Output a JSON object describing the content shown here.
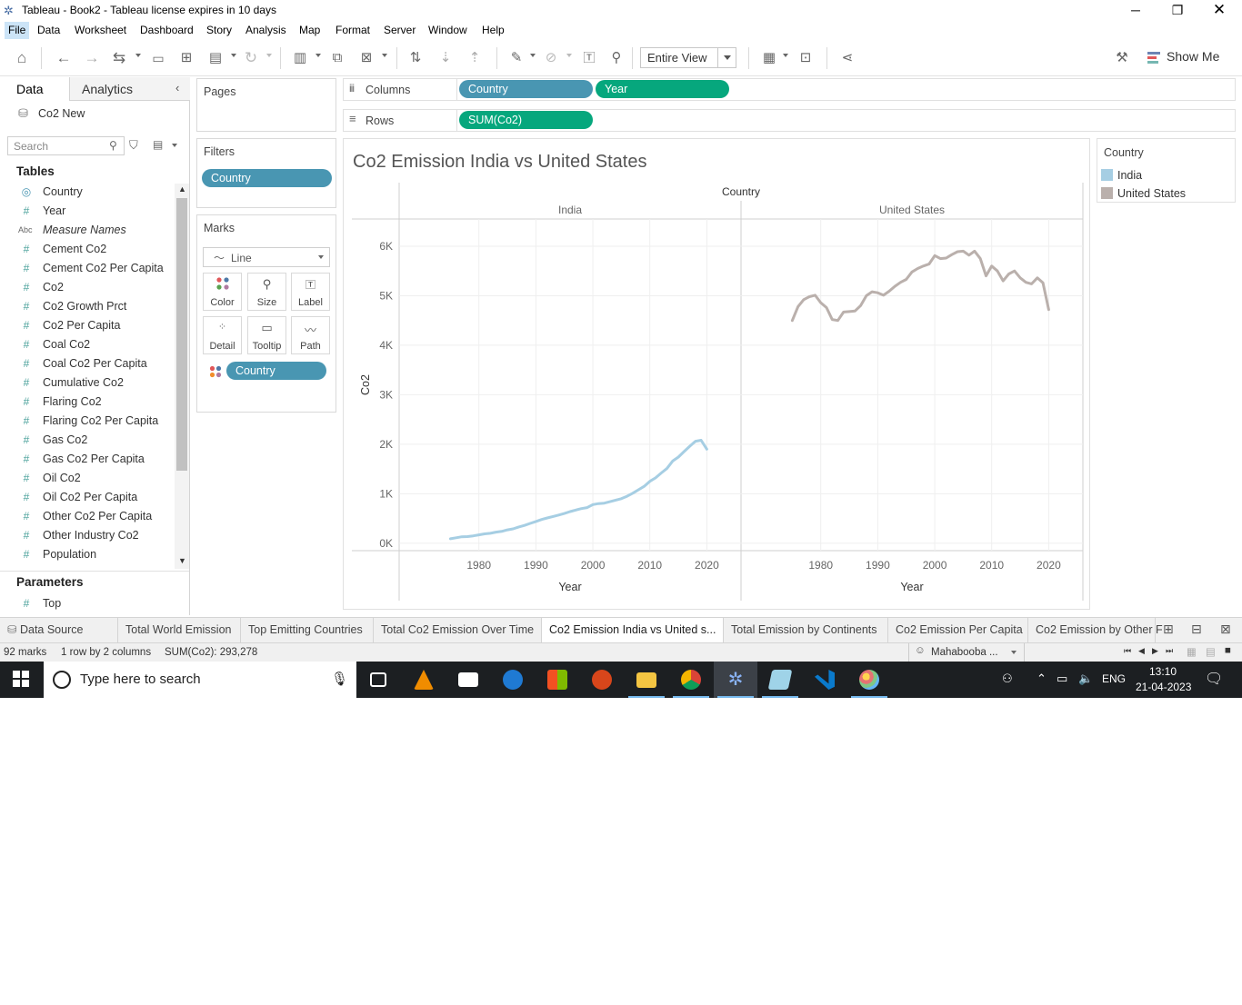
{
  "window": {
    "title": "Tableau - Book2 - Tableau license expires in 10 days"
  },
  "menu": [
    "File",
    "Data",
    "Worksheet",
    "Dashboard",
    "Story",
    "Analysis",
    "Map",
    "Format",
    "Server",
    "Window",
    "Help"
  ],
  "toolbar": {
    "fit_label": "Entire View",
    "show_me_label": "Show Me"
  },
  "data_pane": {
    "tabs": [
      "Data",
      "Analytics"
    ],
    "datasource": "Co2 New",
    "search_placeholder": "Search",
    "tables_heading": "Tables",
    "fields": [
      {
        "icon": "globe",
        "label": "Country",
        "italic": false
      },
      {
        "icon": "#",
        "label": "Year",
        "italic": false
      },
      {
        "icon": "Abc",
        "label": "Measure Names",
        "italic": true
      },
      {
        "icon": "#",
        "label": "Cement Co2",
        "italic": false
      },
      {
        "icon": "#",
        "label": "Cement Co2 Per Capita",
        "italic": false
      },
      {
        "icon": "#",
        "label": "Co2",
        "italic": false
      },
      {
        "icon": "#",
        "label": "Co2 Growth Prct",
        "italic": false
      },
      {
        "icon": "#",
        "label": "Co2 Per Capita",
        "italic": false
      },
      {
        "icon": "#",
        "label": "Coal Co2",
        "italic": false
      },
      {
        "icon": "#",
        "label": "Coal Co2 Per Capita",
        "italic": false
      },
      {
        "icon": "#",
        "label": "Cumulative Co2",
        "italic": false
      },
      {
        "icon": "#",
        "label": "Flaring Co2",
        "italic": false
      },
      {
        "icon": "#",
        "label": "Flaring Co2 Per Capita",
        "italic": false
      },
      {
        "icon": "#",
        "label": "Gas Co2",
        "italic": false
      },
      {
        "icon": "#",
        "label": "Gas Co2 Per Capita",
        "italic": false
      },
      {
        "icon": "#",
        "label": "Oil Co2",
        "italic": false
      },
      {
        "icon": "#",
        "label": "Oil Co2 Per Capita",
        "italic": false
      },
      {
        "icon": "#",
        "label": "Other Co2 Per Capita",
        "italic": false
      },
      {
        "icon": "#",
        "label": "Other Industry Co2",
        "italic": false
      },
      {
        "icon": "#",
        "label": "Population",
        "italic": false
      }
    ],
    "parameters_heading": "Parameters",
    "parameters": [
      {
        "icon": "#",
        "label": "Top"
      }
    ]
  },
  "cards": {
    "pages": "Pages",
    "filters": "Filters",
    "filter_pill": "Country",
    "marks": "Marks",
    "mark_type": "Line",
    "mark_buttons": [
      "Color",
      "Size",
      "Label",
      "Detail",
      "Tooltip",
      "Path"
    ],
    "color_pill": "Country"
  },
  "shelves": {
    "columns_label": "Columns",
    "rows_label": "Rows",
    "columns_pills": [
      "Country",
      "Year"
    ],
    "rows_pills": [
      "SUM(Co2)"
    ]
  },
  "legend": {
    "title": "Country",
    "items": [
      {
        "label": "India",
        "color": "#a6cee3"
      },
      {
        "label": "United States",
        "color": "#bab0ac"
      }
    ]
  },
  "chart_data": {
    "type": "line",
    "title": "Co2 Emission India vs United States",
    "column_header": "Country",
    "panes": [
      "India",
      "United States"
    ],
    "xlabel": "Year",
    "ylabel": "Co2",
    "xticks": [
      1980,
      1990,
      2000,
      2010,
      2020
    ],
    "yticks": [
      0,
      1000,
      2000,
      3000,
      4000,
      5000,
      6000
    ],
    "ytick_labels": [
      "0K",
      "1K",
      "2K",
      "3K",
      "4K",
      "5K",
      "6K"
    ],
    "xlim": [
      1966,
      2026
    ],
    "ylim": [
      -150,
      6550
    ],
    "series": [
      {
        "name": "India",
        "color": "#a6cee3",
        "x": [
          1975,
          1976,
          1977,
          1978,
          1979,
          1980,
          1981,
          1982,
          1983,
          1984,
          1985,
          1986,
          1987,
          1988,
          1989,
          1990,
          1991,
          1992,
          1993,
          1994,
          1995,
          1996,
          1997,
          1998,
          1999,
          2000,
          2001,
          2002,
          2003,
          2004,
          2005,
          2006,
          2007,
          2008,
          2009,
          2010,
          2011,
          2012,
          2013,
          2014,
          2015,
          2016,
          2017,
          2018,
          2019,
          2020
        ],
        "y": [
          90,
          110,
          130,
          135,
          150,
          170,
          190,
          200,
          225,
          240,
          270,
          290,
          330,
          360,
          400,
          440,
          480,
          510,
          540,
          570,
          600,
          640,
          670,
          700,
          720,
          780,
          800,
          810,
          840,
          870,
          900,
          950,
          1010,
          1080,
          1150,
          1250,
          1320,
          1420,
          1510,
          1660,
          1740,
          1850,
          1960,
          2060,
          2080,
          1900
        ]
      },
      {
        "name": "United States",
        "color": "#bab0ac",
        "x": [
          1975,
          1976,
          1977,
          1978,
          1979,
          1980,
          1981,
          1982,
          1983,
          1984,
          1985,
          1986,
          1987,
          1988,
          1989,
          1990,
          1991,
          1992,
          1993,
          1994,
          1995,
          1996,
          1997,
          1998,
          1999,
          2000,
          2001,
          2002,
          2003,
          2004,
          2005,
          2006,
          2007,
          2008,
          2009,
          2010,
          2011,
          2012,
          2013,
          2014,
          2015,
          2016,
          2017,
          2018,
          2019,
          2020
        ],
        "y": [
          4500,
          4780,
          4920,
          4980,
          5010,
          4860,
          4760,
          4520,
          4500,
          4670,
          4680,
          4690,
          4800,
          5000,
          5080,
          5060,
          5010,
          5090,
          5190,
          5270,
          5330,
          5480,
          5550,
          5600,
          5640,
          5810,
          5750,
          5760,
          5830,
          5890,
          5900,
          5820,
          5900,
          5750,
          5400,
          5600,
          5500,
          5300,
          5440,
          5500,
          5360,
          5270,
          5240,
          5360,
          5260,
          4720
        ]
      }
    ],
    "grid": true
  },
  "sheet_tabs": {
    "data_source": "Data Source",
    "sheets": [
      "Total World Emission",
      "Top Emitting Countries",
      "Total Co2 Emission Over Time",
      "Co2 Emission India vs United s...",
      "Total Emission by Continents",
      "Co2 Emission Per Capita",
      "Co2 Emission by Other F"
    ],
    "active_index": 3
  },
  "status": {
    "marks": "92 marks",
    "layout": "1 row by 2 columns",
    "sum": "SUM(Co2): 293,278",
    "user": "Mahabooba ..."
  },
  "taskbar": {
    "search_placeholder": "Type here to search",
    "lang": "ENG",
    "time": "13:10",
    "date": "21-04-2023"
  }
}
